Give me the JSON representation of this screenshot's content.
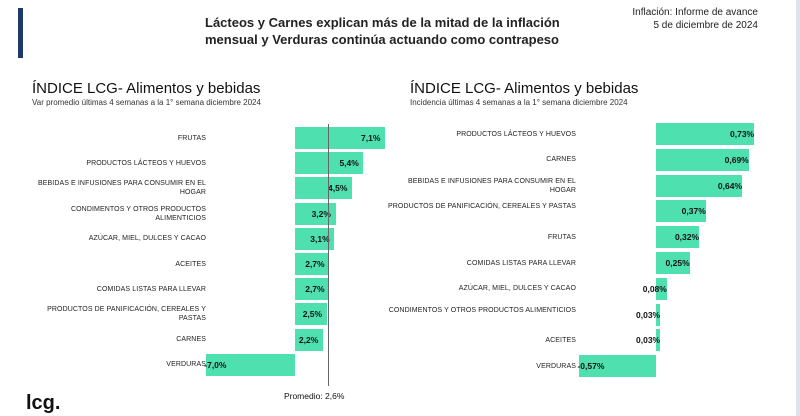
{
  "header": {
    "headline": "Lácteos y Carnes explican más de la mitad de la inflación mensual y Verduras continúa actuando como contrapeso",
    "report": "Inflación: Informe de avance",
    "date": "5 de diciembre de 2024"
  },
  "logo": {
    "text": "lcg."
  },
  "colors": {
    "bar": "#4fe0b0",
    "accent": "#1f3a68"
  },
  "chart_data": [
    {
      "type": "bar",
      "orientation": "horizontal",
      "title": "ÍNDICE LCG- Alimentos y bebidas",
      "subtitle": "Var promedio últimas 4 semanas a la 1° semana diciembre 2024",
      "categories": [
        "FRUTAS",
        "PRODUCTOS LÁCTEOS Y HUEVOS",
        "BEBIDAS E INFUSIONES PARA CONSUMIR EN EL HOGAR",
        "CONDIMENTOS Y OTROS PRODUCTOS ALIMENTICIOS",
        "AZÚCAR, MIEL, DULCES Y CACAO",
        "ACEITES",
        "COMIDAS LISTAS PARA LLEVAR",
        "PRODUCTOS DE PANIFICACIÓN, CEREALES Y PASTAS",
        "CARNES",
        "VERDURAS"
      ],
      "values": [
        7.1,
        5.4,
        4.5,
        3.2,
        3.1,
        2.7,
        2.7,
        2.5,
        2.2,
        -7.0
      ],
      "labels": [
        "7,1%",
        "5,4%",
        "4,5%",
        "3,2%",
        "3,1%",
        "2,7%",
        "2,7%",
        "2,5%",
        "2,2%",
        "-7,0%"
      ],
      "average": {
        "value": 2.6,
        "label": "Promedio: 2,6%"
      }
    },
    {
      "type": "bar",
      "orientation": "horizontal",
      "title": "ÍNDICE LCG- Alimentos y bebidas",
      "subtitle": "Incidencia últimas 4 semanas a la 1° semana diciembre 2024",
      "categories": [
        "PRODUCTOS LÁCTEOS Y HUEVOS",
        "CARNES",
        "BEBIDAS E INFUSIONES PARA CONSUMIR EN EL HOGAR",
        "PRODUCTOS DE PANIFICACIÓN, CEREALES Y PASTAS",
        "FRUTAS",
        "COMIDAS LISTAS PARA LLEVAR",
        "AZÚCAR, MIEL, DULCES Y CACAO",
        "CONDIMENTOS Y OTROS PRODUCTOS ALIMENTICIOS",
        "ACEITES",
        "VERDURAS"
      ],
      "values": [
        0.73,
        0.69,
        0.64,
        0.37,
        0.32,
        0.25,
        0.08,
        0.03,
        0.03,
        -0.57
      ],
      "labels": [
        "0,73%",
        "0,69%",
        "0,64%",
        "0,37%",
        "0,32%",
        "0,25%",
        "0,08%",
        "0,03%",
        "0,03%",
        "-0,57%"
      ]
    }
  ]
}
